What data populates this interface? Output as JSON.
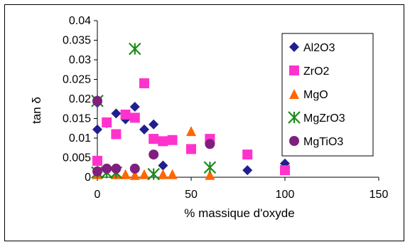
{
  "chart_data": {
    "type": "scatter",
    "title": "",
    "xlabel": "% massique d'oxyde",
    "ylabel": "tan δ",
    "xlim": [
      0,
      150
    ],
    "ylim": [
      0,
      0.04
    ],
    "x_ticks": [
      "0",
      "50",
      "100",
      "150"
    ],
    "y_ticks": [
      "0",
      "0.005",
      "0.01",
      "0.015",
      "0.02",
      "0.025",
      "0.03",
      "0.035",
      "0.04"
    ],
    "grid": false,
    "legend_position": "right",
    "series": [
      {
        "name": "Al2O3",
        "marker": "diamond",
        "color": "#1f1f8f",
        "points": [
          [
            0,
            0.0122
          ],
          [
            0,
            0.019
          ],
          [
            5,
            0.0138
          ],
          [
            10,
            0.0163
          ],
          [
            15,
            0.0148
          ],
          [
            20,
            0.018
          ],
          [
            25,
            0.0122
          ],
          [
            30,
            0.0135
          ],
          [
            35,
            0.003
          ],
          [
            80,
            0.0018
          ],
          [
            100,
            0.0035
          ]
        ]
      },
      {
        "name": "ZrO2",
        "marker": "square",
        "color": "#ff33cc",
        "points": [
          [
            0,
            0.0042
          ],
          [
            5,
            0.014
          ],
          [
            10,
            0.011
          ],
          [
            15,
            0.016
          ],
          [
            20,
            0.0152
          ],
          [
            25,
            0.024
          ],
          [
            30,
            0.0098
          ],
          [
            35,
            0.0092
          ],
          [
            40,
            0.0095
          ],
          [
            50,
            0.0072
          ],
          [
            60,
            0.0098
          ],
          [
            80,
            0.0058
          ],
          [
            100,
            0.0018
          ]
        ]
      },
      {
        "name": "MgO",
        "marker": "triangle",
        "color": "#ff6600",
        "points": [
          [
            0,
            0.0008
          ],
          [
            10,
            0.0008
          ],
          [
            15,
            0.0008
          ],
          [
            20,
            0.0006
          ],
          [
            25,
            0.0008
          ],
          [
            35,
            0.0008
          ],
          [
            40,
            0.0008
          ],
          [
            50,
            0.0118
          ],
          [
            60,
            0.0006
          ]
        ]
      },
      {
        "name": "MgZrO3",
        "marker": "asterisk",
        "color": "#1a8a1a",
        "points": [
          [
            0,
            0.0195
          ],
          [
            0,
            0.0012
          ],
          [
            5,
            0.0012
          ],
          [
            10,
            0.0012
          ],
          [
            20,
            0.0328
          ],
          [
            30,
            0.0008
          ],
          [
            60,
            0.0025
          ]
        ]
      },
      {
        "name": "MgTiO3",
        "marker": "circle",
        "color": "#7f1f7f",
        "points": [
          [
            0,
            0.0195
          ],
          [
            0,
            0.0015
          ],
          [
            5,
            0.0022
          ],
          [
            10,
            0.0022
          ],
          [
            20,
            0.0022
          ],
          [
            30,
            0.0058
          ],
          [
            60,
            0.0085
          ]
        ]
      }
    ]
  }
}
